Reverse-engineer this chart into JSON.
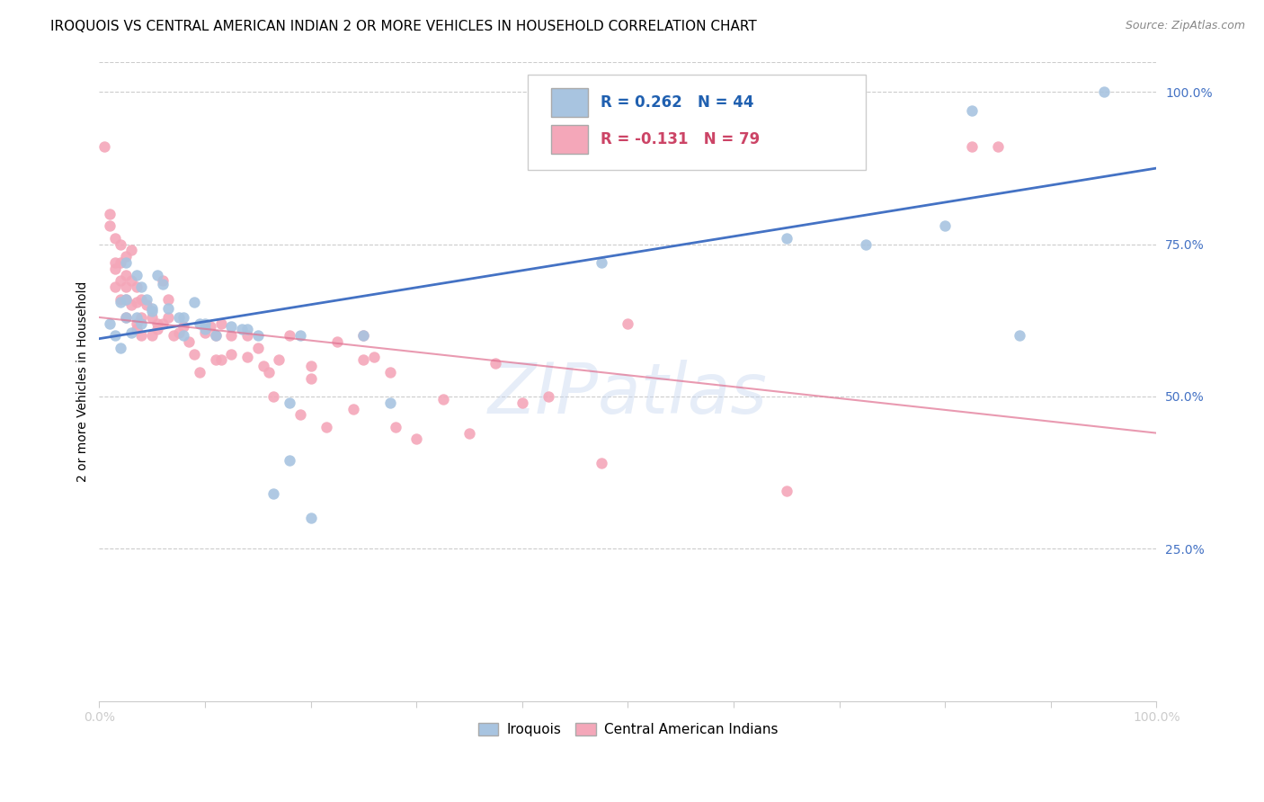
{
  "title": "IROQUOIS VS CENTRAL AMERICAN INDIAN 2 OR MORE VEHICLES IN HOUSEHOLD CORRELATION CHART",
  "source": "Source: ZipAtlas.com",
  "ylabel_label": "2 or more Vehicles in Household",
  "legend_blue_r": "R = 0.262",
  "legend_blue_n": "N = 44",
  "legend_pink_r": "R = -0.131",
  "legend_pink_n": "N = 79",
  "watermark": "ZIPatlas",
  "blue_dot_color": "#a8c4e0",
  "pink_dot_color": "#f4a7b9",
  "blue_line_color": "#4472C4",
  "pink_line_color": "#e07090",
  "blue_dots": [
    [
      1.0,
      62.0
    ],
    [
      1.5,
      60.0
    ],
    [
      2.0,
      65.5
    ],
    [
      2.0,
      58.0
    ],
    [
      2.5,
      63.0
    ],
    [
      2.5,
      72.0
    ],
    [
      2.5,
      66.0
    ],
    [
      3.0,
      60.5
    ],
    [
      3.5,
      70.0
    ],
    [
      3.5,
      63.0
    ],
    [
      4.0,
      68.0
    ],
    [
      4.0,
      62.0
    ],
    [
      4.5,
      66.0
    ],
    [
      5.0,
      64.5
    ],
    [
      5.0,
      64.0
    ],
    [
      5.5,
      70.0
    ],
    [
      6.0,
      68.5
    ],
    [
      6.5,
      64.5
    ],
    [
      7.5,
      63.0
    ],
    [
      8.0,
      63.0
    ],
    [
      8.0,
      60.0
    ],
    [
      9.0,
      65.5
    ],
    [
      9.5,
      62.0
    ],
    [
      10.0,
      61.0
    ],
    [
      10.0,
      62.0
    ],
    [
      11.0,
      60.0
    ],
    [
      12.5,
      61.5
    ],
    [
      13.5,
      61.0
    ],
    [
      14.0,
      61.0
    ],
    [
      15.0,
      60.0
    ],
    [
      16.5,
      34.0
    ],
    [
      18.0,
      49.0
    ],
    [
      18.0,
      39.5
    ],
    [
      19.0,
      60.0
    ],
    [
      20.0,
      30.0
    ],
    [
      25.0,
      60.0
    ],
    [
      27.5,
      49.0
    ],
    [
      47.5,
      72.0
    ],
    [
      65.0,
      76.0
    ],
    [
      72.5,
      75.0
    ],
    [
      80.0,
      78.0
    ],
    [
      82.5,
      97.0
    ],
    [
      87.0,
      60.0
    ],
    [
      95.0,
      100.0
    ]
  ],
  "pink_dots": [
    [
      0.5,
      91.0
    ],
    [
      1.0,
      78.0
    ],
    [
      1.0,
      80.0
    ],
    [
      1.5,
      76.0
    ],
    [
      1.5,
      72.0
    ],
    [
      1.5,
      71.0
    ],
    [
      1.5,
      68.0
    ],
    [
      2.0,
      75.0
    ],
    [
      2.0,
      72.0
    ],
    [
      2.0,
      69.0
    ],
    [
      2.0,
      66.0
    ],
    [
      2.5,
      73.0
    ],
    [
      2.5,
      70.0
    ],
    [
      2.5,
      68.0
    ],
    [
      2.5,
      66.0
    ],
    [
      2.5,
      63.0
    ],
    [
      3.0,
      74.0
    ],
    [
      3.0,
      69.0
    ],
    [
      3.0,
      65.0
    ],
    [
      3.5,
      68.0
    ],
    [
      3.5,
      65.5
    ],
    [
      3.5,
      62.0
    ],
    [
      3.5,
      61.0
    ],
    [
      4.0,
      66.0
    ],
    [
      4.0,
      63.0
    ],
    [
      4.0,
      60.0
    ],
    [
      4.5,
      65.0
    ],
    [
      5.0,
      63.0
    ],
    [
      5.0,
      60.0
    ],
    [
      5.5,
      62.0
    ],
    [
      5.5,
      61.0
    ],
    [
      6.0,
      69.0
    ],
    [
      6.0,
      62.0
    ],
    [
      6.5,
      66.0
    ],
    [
      6.5,
      63.0
    ],
    [
      7.0,
      60.0
    ],
    [
      7.5,
      60.5
    ],
    [
      8.0,
      61.5
    ],
    [
      8.5,
      59.0
    ],
    [
      9.0,
      57.0
    ],
    [
      9.5,
      54.0
    ],
    [
      10.0,
      60.5
    ],
    [
      10.5,
      61.5
    ],
    [
      11.0,
      60.0
    ],
    [
      11.0,
      56.0
    ],
    [
      11.5,
      62.0
    ],
    [
      11.5,
      56.0
    ],
    [
      12.5,
      60.0
    ],
    [
      12.5,
      57.0
    ],
    [
      14.0,
      60.0
    ],
    [
      14.0,
      56.5
    ],
    [
      15.0,
      58.0
    ],
    [
      15.5,
      55.0
    ],
    [
      16.0,
      54.0
    ],
    [
      16.5,
      50.0
    ],
    [
      17.0,
      56.0
    ],
    [
      18.0,
      60.0
    ],
    [
      19.0,
      47.0
    ],
    [
      20.0,
      53.0
    ],
    [
      20.0,
      55.0
    ],
    [
      21.5,
      45.0
    ],
    [
      22.5,
      59.0
    ],
    [
      24.0,
      48.0
    ],
    [
      25.0,
      60.0
    ],
    [
      25.0,
      56.0
    ],
    [
      26.0,
      56.5
    ],
    [
      27.5,
      54.0
    ],
    [
      28.0,
      45.0
    ],
    [
      30.0,
      43.0
    ],
    [
      32.5,
      49.5
    ],
    [
      35.0,
      44.0
    ],
    [
      37.5,
      55.5
    ],
    [
      40.0,
      49.0
    ],
    [
      42.5,
      50.0
    ],
    [
      47.5,
      39.0
    ],
    [
      50.0,
      62.0
    ],
    [
      65.0,
      34.5
    ],
    [
      82.5,
      91.0
    ],
    [
      85.0,
      91.0
    ]
  ],
  "xlim": [
    0,
    100
  ],
  "ylim": [
    0,
    105
  ],
  "blue_trend_x": [
    0,
    100
  ],
  "blue_trend_y": [
    59.5,
    87.5
  ],
  "pink_trend_x": [
    0,
    100
  ],
  "pink_trend_y": [
    63.0,
    44.0
  ],
  "right_ytick_vals": [
    25,
    50,
    75,
    100
  ],
  "right_ytick_labels": [
    "25.0%",
    "50.0%",
    "75.0%",
    "100.0%"
  ],
  "xtick_vals": [
    0,
    10,
    20,
    30,
    40,
    50,
    60,
    70,
    80,
    90,
    100
  ],
  "xtick_labels": [
    "0.0%",
    "",
    "",
    "",
    "",
    "",
    "",
    "",
    "",
    "",
    "100.0%"
  ]
}
